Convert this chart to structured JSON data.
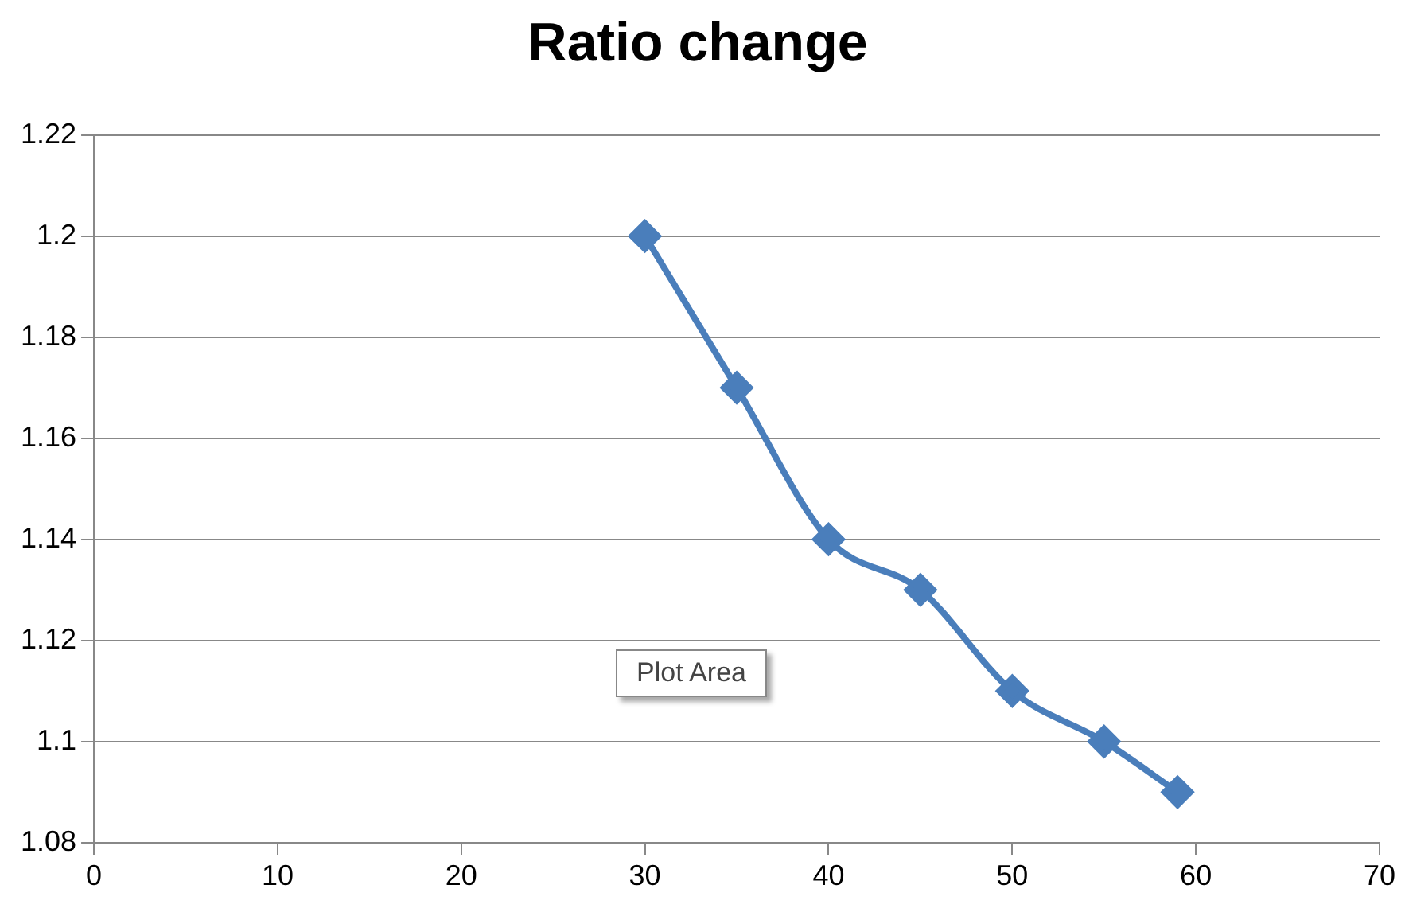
{
  "chart_data": {
    "type": "line",
    "title": "Ratio change",
    "x": [
      30,
      35,
      40,
      45,
      50,
      55,
      59
    ],
    "series": [
      {
        "color": "#4a7ebb",
        "values": [
          1.2,
          1.17,
          1.14,
          1.13,
          1.11,
          1.1,
          1.09
        ]
      }
    ],
    "xlim": [
      0,
      70
    ],
    "xticks": [
      0,
      10,
      20,
      30,
      40,
      50,
      60,
      70
    ],
    "ylim": [
      1.08,
      1.22
    ],
    "yticks": [
      1.08,
      1.1,
      1.12,
      1.14,
      1.16,
      1.18,
      1.2,
      1.22
    ],
    "grid": "y",
    "legend": false,
    "marker": "diamond",
    "line_style": "solid",
    "annotations": [
      "Plot Area"
    ]
  }
}
